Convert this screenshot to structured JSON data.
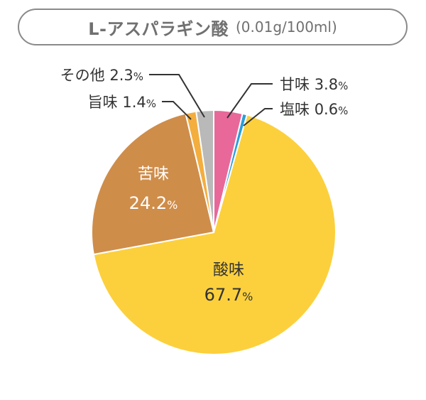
{
  "title": {
    "main": "L-アスパラギン酸",
    "unit": "(0.01g/100ml)"
  },
  "colors": {
    "title_border": "#8a8a8a",
    "title_text": "#707070",
    "label_text": "#333333",
    "inner_label_text": "#ffffff"
  },
  "chart_data": {
    "type": "pie",
    "start": "12 o'clock",
    "direction": "clockwise",
    "unit": "%",
    "slices": [
      {
        "name": "甘味",
        "value": 3.8,
        "display": "3.8",
        "color": "#e8689a",
        "label_position": "outside-right"
      },
      {
        "name": "塩味",
        "value": 0.6,
        "display": "0.6",
        "color": "#2a9fd8",
        "label_position": "outside-right"
      },
      {
        "name": "酸味",
        "value": 67.7,
        "display": "67.7",
        "color": "#fcd03c",
        "label_position": "inside"
      },
      {
        "name": "苦味",
        "value": 24.2,
        "display": "24.2",
        "color": "#cf8d4a",
        "label_position": "inside"
      },
      {
        "name": "旨味",
        "value": 1.4,
        "display": "1.4",
        "color": "#f3ae3e",
        "label_position": "outside-left"
      },
      {
        "name": "その他",
        "value": 2.3,
        "display": "2.3",
        "color": "#b9b9b9",
        "label_position": "outside-left"
      }
    ]
  }
}
